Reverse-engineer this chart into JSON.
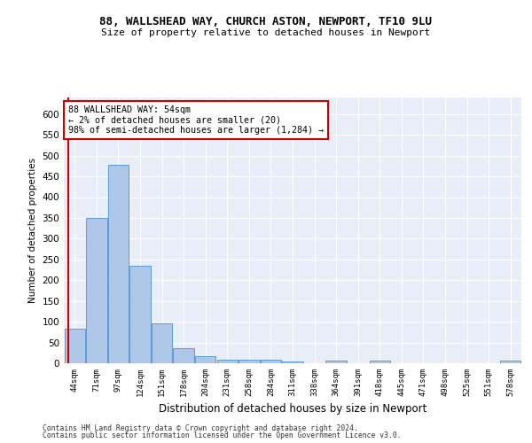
{
  "title_line1": "88, WALLSHEAD WAY, CHURCH ASTON, NEWPORT, TF10 9LU",
  "title_line2": "Size of property relative to detached houses in Newport",
  "xlabel": "Distribution of detached houses by size in Newport",
  "ylabel": "Number of detached properties",
  "bar_labels": [
    "44sqm",
    "71sqm",
    "97sqm",
    "124sqm",
    "151sqm",
    "178sqm",
    "204sqm",
    "231sqm",
    "258sqm",
    "284sqm",
    "311sqm",
    "338sqm",
    "364sqm",
    "391sqm",
    "418sqm",
    "445sqm",
    "471sqm",
    "498sqm",
    "525sqm",
    "551sqm",
    "578sqm"
  ],
  "bar_values": [
    84,
    350,
    478,
    235,
    97,
    37,
    18,
    8,
    9,
    9,
    5,
    0,
    7,
    0,
    6,
    0,
    0,
    0,
    0,
    0,
    6
  ],
  "bar_color": "#aec6e8",
  "bar_edge_color": "#5b9bd5",
  "annotation_box_text": "88 WALLSHEAD WAY: 54sqm\n← 2% of detached houses are smaller (20)\n98% of semi-detached houses are larger (1,284) →",
  "annotation_box_color": "#ffffff",
  "annotation_box_edge_color": "#cc0000",
  "property_line_x": -0.3,
  "ylim": [
    0,
    640
  ],
  "yticks": [
    0,
    50,
    100,
    150,
    200,
    250,
    300,
    350,
    400,
    450,
    500,
    550,
    600
  ],
  "background_color": "#e8eef8",
  "grid_color": "#ffffff",
  "fig_background": "#ffffff",
  "footer_line1": "Contains HM Land Registry data © Crown copyright and database right 2024.",
  "footer_line2": "Contains public sector information licensed under the Open Government Licence v3.0."
}
